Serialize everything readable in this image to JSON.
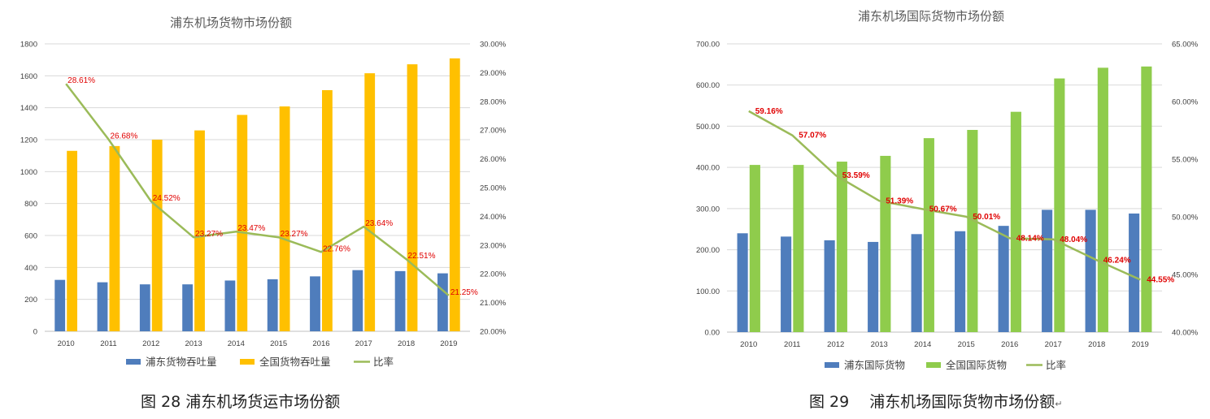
{
  "chart_data": [
    {
      "type": "bar",
      "title": "浦东机场货物市场份额",
      "categories": [
        "2010",
        "2011",
        "2012",
        "2013",
        "2014",
        "2015",
        "2016",
        "2017",
        "2018",
        "2019"
      ],
      "series": [
        {
          "name": "浦东货物吞吐量",
          "type": "bar",
          "axis": "left",
          "color": "#4f7dbc",
          "values": [
            322,
            307,
            294,
            294,
            318,
            326,
            344,
            383,
            377,
            363
          ]
        },
        {
          "name": "全国货物吞吐量",
          "type": "bar",
          "axis": "left",
          "color": "#ffc000",
          "values": [
            1130,
            1160,
            1200,
            1258,
            1355,
            1408,
            1510,
            1616,
            1672,
            1709
          ]
        },
        {
          "name": "比率",
          "type": "line",
          "axis": "right",
          "color": "#9bbb59",
          "values": [
            28.61,
            26.68,
            24.52,
            23.27,
            23.47,
            23.27,
            22.76,
            23.64,
            22.51,
            21.25
          ],
          "labels": [
            "28.61%",
            "26.68%",
            "24.52%",
            "23.27%",
            "23.47%",
            "23.27%",
            "22.76%",
            "23.64%",
            "22.51%",
            "21.25%"
          ]
        }
      ],
      "left_axis": {
        "min": 0,
        "max": 1800,
        "ticks": [
          "0",
          "200",
          "400",
          "600",
          "800",
          "1000",
          "1200",
          "1400",
          "1600",
          "1800"
        ]
      },
      "right_axis": {
        "min": 20,
        "max": 30,
        "ticks": [
          "20.00%",
          "21.00%",
          "22.00%",
          "23.00%",
          "24.00%",
          "25.00%",
          "26.00%",
          "27.00%",
          "28.00%",
          "29.00%",
          "30.00%"
        ]
      },
      "label_color": "#e00000",
      "grid": true,
      "legend": "bottom"
    },
    {
      "type": "bar",
      "title": "浦东机场国际货物市场份额",
      "categories": [
        "2010",
        "2011",
        "2012",
        "2013",
        "2014",
        "2015",
        "2016",
        "2017",
        "2018",
        "2019"
      ],
      "series": [
        {
          "name": "浦东国际货物",
          "type": "bar",
          "axis": "left",
          "color": "#4f7dbc",
          "values": [
            240,
            232,
            223,
            219,
            238,
            245,
            258,
            297,
            297,
            288
          ]
        },
        {
          "name": "全国国际货物",
          "type": "bar",
          "axis": "left",
          "color": "#8fcc4c",
          "values": [
            406,
            406,
            414,
            428,
            471,
            491,
            535,
            616,
            642,
            645
          ]
        },
        {
          "name": "比率",
          "type": "line",
          "axis": "right",
          "color": "#9bbb59",
          "values": [
            59.16,
            57.07,
            53.59,
            51.39,
            50.67,
            50.01,
            48.14,
            48.04,
            46.24,
            44.55
          ],
          "labels": [
            "59.16%",
            "57.07%",
            "53.59%",
            "51.39%",
            "50.67%",
            "50.01%",
            "48.14%",
            "48.04%",
            "46.24%",
            "44.55%"
          ]
        }
      ],
      "left_axis": {
        "min": 0,
        "max": 700,
        "ticks": [
          "0.00",
          "100.00",
          "200.00",
          "300.00",
          "400.00",
          "500.00",
          "600.00",
          "700.00"
        ]
      },
      "right_axis": {
        "min": 40,
        "max": 65,
        "ticks": [
          "40.00%",
          "45.00%",
          "50.00%",
          "55.00%",
          "60.00%",
          "65.00%"
        ]
      },
      "label_color": "#e00000",
      "grid": true,
      "legend": "bottom"
    }
  ],
  "captions": {
    "left": "图 28 浦东机场货运市场份额",
    "right": "图 29　 浦东机场国际货物市场份额"
  }
}
